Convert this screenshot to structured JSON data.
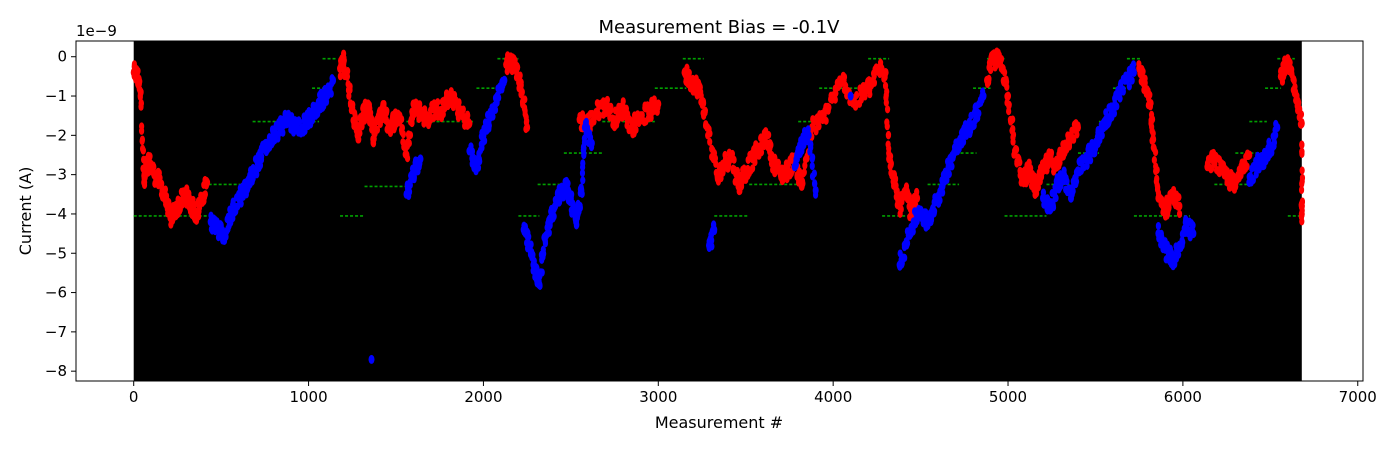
{
  "chart_data": {
    "type": "scatter",
    "title": "Measurement Bias = -0.1V",
    "xlabel": "Measurement #",
    "ylabel": "Current (A)",
    "y_offset_text": "1e−9",
    "xlim": [
      -330,
      7030
    ],
    "ylim": [
      -8.25,
      0.4
    ],
    "x_ticks": [
      0,
      1000,
      2000,
      3000,
      4000,
      5000,
      6000,
      7000
    ],
    "x_tick_labels": [
      "0",
      "1000",
      "2000",
      "3000",
      "4000",
      "5000",
      "6000",
      "7000"
    ],
    "y_ticks": [
      0,
      -1,
      -2,
      -3,
      -4,
      -5,
      -6,
      -7,
      -8
    ],
    "y_tick_labels": [
      "0",
      "−1",
      "−2",
      "−3",
      "−4",
      "−5",
      "−6",
      "−7",
      "−8"
    ],
    "background_span": [
      0,
      6680
    ],
    "background_color": "#000000",
    "colors": {
      "red": "#ff0000",
      "blue": "#0000ff",
      "green": "#00a000"
    },
    "series": [
      {
        "color": "red",
        "x": [
          0,
          20,
          40,
          60,
          70,
          90,
          120,
          150,
          180,
          210,
          240,
          270,
          300,
          330,
          360,
          390,
          420,
          1180,
          1200,
          1220,
          1250,
          1280,
          1310,
          1340,
          1370,
          1400,
          1430,
          1460,
          1490,
          1520,
          1560,
          1600,
          1640,
          1680,
          1720,
          1760,
          1800,
          1840,
          1880,
          1920,
          2130,
          2160,
          2190,
          2220,
          2250,
          2550,
          2600,
          2650,
          2700,
          2750,
          2800,
          2850,
          2900,
          2950,
          3000,
          3150,
          3180,
          3210,
          3240,
          3280,
          3340,
          3380,
          3420,
          3460,
          3500,
          3540,
          3580,
          3620,
          3660,
          3700,
          3740,
          3780,
          3820,
          3880,
          3940,
          4000,
          4060,
          4120,
          4180,
          4220,
          4260,
          4300,
          4320,
          4350,
          4380,
          4420,
          4450,
          4480,
          4880,
          4910,
          4940,
          4970,
          5000,
          5040,
          5080,
          5120,
          5160,
          5200,
          5240,
          5280,
          5320,
          5360,
          5400,
          5750,
          5780,
          5810,
          5830,
          5860,
          5900,
          5940,
          5980,
          6140,
          6180,
          6220,
          6260,
          6300,
          6340,
          6380,
          6560,
          6590,
          6620,
          6650,
          6680,
          6680,
          6680
        ],
        "y": [
          -0.4,
          -0.5,
          -0.9,
          -3.2,
          -2.8,
          -2.7,
          -3.0,
          -3.2,
          -3.6,
          -4.1,
          -3.9,
          -3.7,
          -3.5,
          -3.8,
          -4.0,
          -3.6,
          -3.2,
          -0.3,
          -0.1,
          -0.5,
          -1.3,
          -2.0,
          -1.5,
          -1.2,
          -2.1,
          -1.6,
          -1.3,
          -1.8,
          -1.6,
          -1.5,
          -2.5,
          -1.2,
          -1.4,
          -1.6,
          -1.3,
          -1.4,
          -1.0,
          -1.2,
          -1.5,
          -1.7,
          -0.2,
          -0.1,
          -0.3,
          -0.9,
          -1.8,
          -1.6,
          -1.7,
          -1.4,
          -1.2,
          -1.6,
          -1.3,
          -1.8,
          -1.5,
          -1.4,
          -1.2,
          -0.4,
          -0.6,
          -0.7,
          -0.9,
          -1.8,
          -3.1,
          -2.7,
          -2.5,
          -3.3,
          -2.9,
          -2.6,
          -2.3,
          -2.0,
          -2.7,
          -3.0,
          -2.9,
          -2.6,
          -3.3,
          -1.8,
          -1.6,
          -1.0,
          -0.6,
          -1.2,
          -0.9,
          -0.7,
          -0.3,
          -0.4,
          -2.6,
          -3.2,
          -3.8,
          -3.5,
          -4.0,
          -3.6,
          -0.6,
          -0.1,
          -0.05,
          -0.3,
          -1.0,
          -2.4,
          -3.1,
          -2.9,
          -3.4,
          -2.9,
          -2.6,
          -2.8,
          -2.3,
          -2.0,
          -1.8,
          -0.3,
          -0.7,
          -1.2,
          -2.1,
          -3.6,
          -3.9,
          -3.5,
          -3.8,
          -2.8,
          -2.6,
          -2.9,
          -3.1,
          -3.3,
          -2.7,
          -2.5,
          -0.5,
          -0.2,
          -0.4,
          -1.0,
          -1.7,
          -4.0,
          -3.8
        ]
      },
      {
        "color": "blue",
        "x": [
          440,
          480,
          520,
          560,
          600,
          640,
          680,
          720,
          760,
          800,
          840,
          880,
          930,
          980,
          1020,
          1060,
          1100,
          1140,
          1360,
          1560,
          1600,
          1640,
          1920,
          1960,
          2000,
          2040,
          2080,
          2120,
          2230,
          2260,
          2290,
          2320,
          2350,
          2380,
          2410,
          2440,
          2470,
          2500,
          2530,
          2560,
          2580,
          2620,
          3290,
          3320,
          3780,
          3820,
          3860,
          3900,
          4100,
          4380,
          4420,
          4460,
          4500,
          4540,
          4580,
          4620,
          4660,
          4700,
          4740,
          4780,
          4820,
          4860,
          5200,
          5240,
          5280,
          5320,
          5360,
          5400,
          5440,
          5480,
          5520,
          5560,
          5600,
          5640,
          5680,
          5720,
          5860,
          5900,
          5940,
          5980,
          6020,
          6060,
          6380,
          6420,
          6460,
          6500,
          6540
        ],
        "y": [
          -4.2,
          -4.4,
          -4.5,
          -4.0,
          -3.6,
          -3.4,
          -3.0,
          -2.6,
          -2.3,
          -2.0,
          -1.8,
          -1.6,
          -1.8,
          -1.7,
          -1.5,
          -1.2,
          -1.0,
          -0.6,
          -7.7,
          -3.5,
          -3.0,
          -2.6,
          -2.4,
          -2.8,
          -2.0,
          -1.5,
          -1.0,
          -0.6,
          -4.4,
          -4.8,
          -5.3,
          -5.8,
          -4.6,
          -4.2,
          -3.8,
          -3.5,
          -3.3,
          -3.6,
          -4.2,
          -3.4,
          -1.8,
          -2.2,
          -4.8,
          -4.4,
          -2.8,
          -2.2,
          -2.0,
          -3.4,
          -1.0,
          -5.3,
          -4.7,
          -4.2,
          -3.9,
          -4.3,
          -3.7,
          -3.4,
          -2.8,
          -2.3,
          -2.0,
          -1.8,
          -1.4,
          -1.0,
          -3.6,
          -3.9,
          -3.3,
          -3.0,
          -3.6,
          -2.9,
          -2.6,
          -2.4,
          -2.0,
          -1.6,
          -1.3,
          -0.9,
          -0.6,
          -0.4,
          -4.5,
          -4.9,
          -5.2,
          -4.8,
          -4.3,
          -4.5,
          -3.2,
          -2.8,
          -2.6,
          -2.3,
          -1.8
        ]
      }
    ],
    "green_levels": [
      {
        "y": -4.05,
        "x": [
          0,
          420
        ]
      },
      {
        "y": -3.25,
        "x": [
          400,
          680
        ]
      },
      {
        "y": -1.65,
        "x": [
          680,
          1060
        ]
      },
      {
        "y": -0.8,
        "x": [
          1020,
          1100
        ]
      },
      {
        "y": -0.05,
        "x": [
          1080,
          1160
        ]
      },
      {
        "y": -4.05,
        "x": [
          1180,
          1320
        ]
      },
      {
        "y": -3.3,
        "x": [
          1320,
          1560
        ]
      },
      {
        "y": -1.65,
        "x": [
          1560,
          1940
        ]
      },
      {
        "y": -0.8,
        "x": [
          1960,
          2100
        ]
      },
      {
        "y": -0.05,
        "x": [
          2080,
          2200
        ]
      },
      {
        "y": -4.05,
        "x": [
          2200,
          2320
        ]
      },
      {
        "y": -3.25,
        "x": [
          2310,
          2480
        ]
      },
      {
        "y": -2.45,
        "x": [
          2460,
          2680
        ]
      },
      {
        "y": -1.65,
        "x": [
          2680,
          2980
        ]
      },
      {
        "y": -0.8,
        "x": [
          2980,
          3160
        ]
      },
      {
        "y": -0.05,
        "x": [
          3140,
          3260
        ]
      },
      {
        "y": -4.05,
        "x": [
          3320,
          3520
        ]
      },
      {
        "y": -3.25,
        "x": [
          3520,
          3800
        ]
      },
      {
        "y": -1.65,
        "x": [
          3800,
          3940
        ]
      },
      {
        "y": -0.8,
        "x": [
          3920,
          4180
        ]
      },
      {
        "y": -0.05,
        "x": [
          4200,
          4320
        ]
      },
      {
        "y": -4.05,
        "x": [
          4280,
          4500
        ]
      },
      {
        "y": -3.25,
        "x": [
          4540,
          4720
        ]
      },
      {
        "y": -2.45,
        "x": [
          4700,
          4820
        ]
      },
      {
        "y": -0.8,
        "x": [
          4800,
          4900
        ]
      },
      {
        "y": -0.05,
        "x": [
          4880,
          4980
        ]
      },
      {
        "y": -4.05,
        "x": [
          4980,
          5220
        ]
      },
      {
        "y": -3.25,
        "x": [
          5220,
          5400
        ]
      },
      {
        "y": -2.45,
        "x": [
          5400,
          5520
        ]
      },
      {
        "y": -1.65,
        "x": [
          5520,
          5600
        ]
      },
      {
        "y": -0.8,
        "x": [
          5600,
          5700
        ]
      },
      {
        "y": -0.05,
        "x": [
          5680,
          5760
        ]
      },
      {
        "y": -4.05,
        "x": [
          5720,
          6040
        ]
      },
      {
        "y": -3.25,
        "x": [
          6180,
          6400
        ]
      },
      {
        "y": -2.45,
        "x": [
          6300,
          6440
        ]
      },
      {
        "y": -1.65,
        "x": [
          6380,
          6480
        ]
      },
      {
        "y": -0.8,
        "x": [
          6470,
          6560
        ]
      },
      {
        "y": -0.05,
        "x": [
          6540,
          6640
        ]
      },
      {
        "y": -4.05,
        "x": [
          6600,
          6680
        ]
      }
    ],
    "grid": false,
    "legend": "none"
  }
}
